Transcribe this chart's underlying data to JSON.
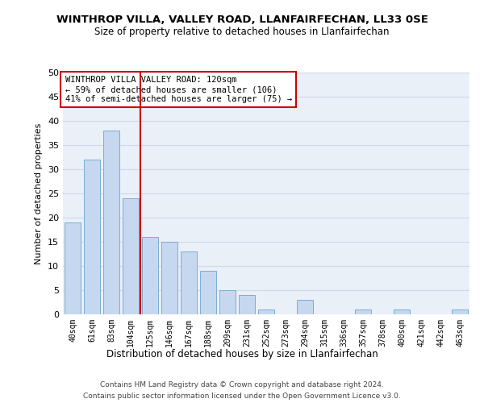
{
  "title": "WINTHROP VILLA, VALLEY ROAD, LLANFAIRFECHAN, LL33 0SE",
  "subtitle": "Size of property relative to detached houses in Llanfairfechan",
  "xlabel": "Distribution of detached houses by size in Llanfairfechan",
  "ylabel": "Number of detached properties",
  "categories": [
    "40sqm",
    "61sqm",
    "83sqm",
    "104sqm",
    "125sqm",
    "146sqm",
    "167sqm",
    "188sqm",
    "209sqm",
    "231sqm",
    "252sqm",
    "273sqm",
    "294sqm",
    "315sqm",
    "336sqm",
    "357sqm",
    "378sqm",
    "400sqm",
    "421sqm",
    "442sqm",
    "463sqm"
  ],
  "values": [
    19,
    32,
    38,
    24,
    16,
    15,
    13,
    9,
    5,
    4,
    1,
    0,
    3,
    0,
    0,
    1,
    0,
    1,
    0,
    0,
    1
  ],
  "bar_color": "#c5d8f0",
  "bar_edge_color": "#7badd4",
  "vline_x_idx": 4,
  "vline_color": "#cc0000",
  "annotation_line1": "WINTHROP VILLA VALLEY ROAD: 120sqm",
  "annotation_line2": "← 59% of detached houses are smaller (106)",
  "annotation_line3": "41% of semi-detached houses are larger (75) →",
  "annotation_box_color": "#cc0000",
  "ylim": [
    0,
    50
  ],
  "yticks": [
    0,
    5,
    10,
    15,
    20,
    25,
    30,
    35,
    40,
    45,
    50
  ],
  "grid_color": "#d0d8e8",
  "background_color": "#eaf0f8",
  "footer_line1": "Contains HM Land Registry data © Crown copyright and database right 2024.",
  "footer_line2": "Contains public sector information licensed under the Open Government Licence v3.0."
}
